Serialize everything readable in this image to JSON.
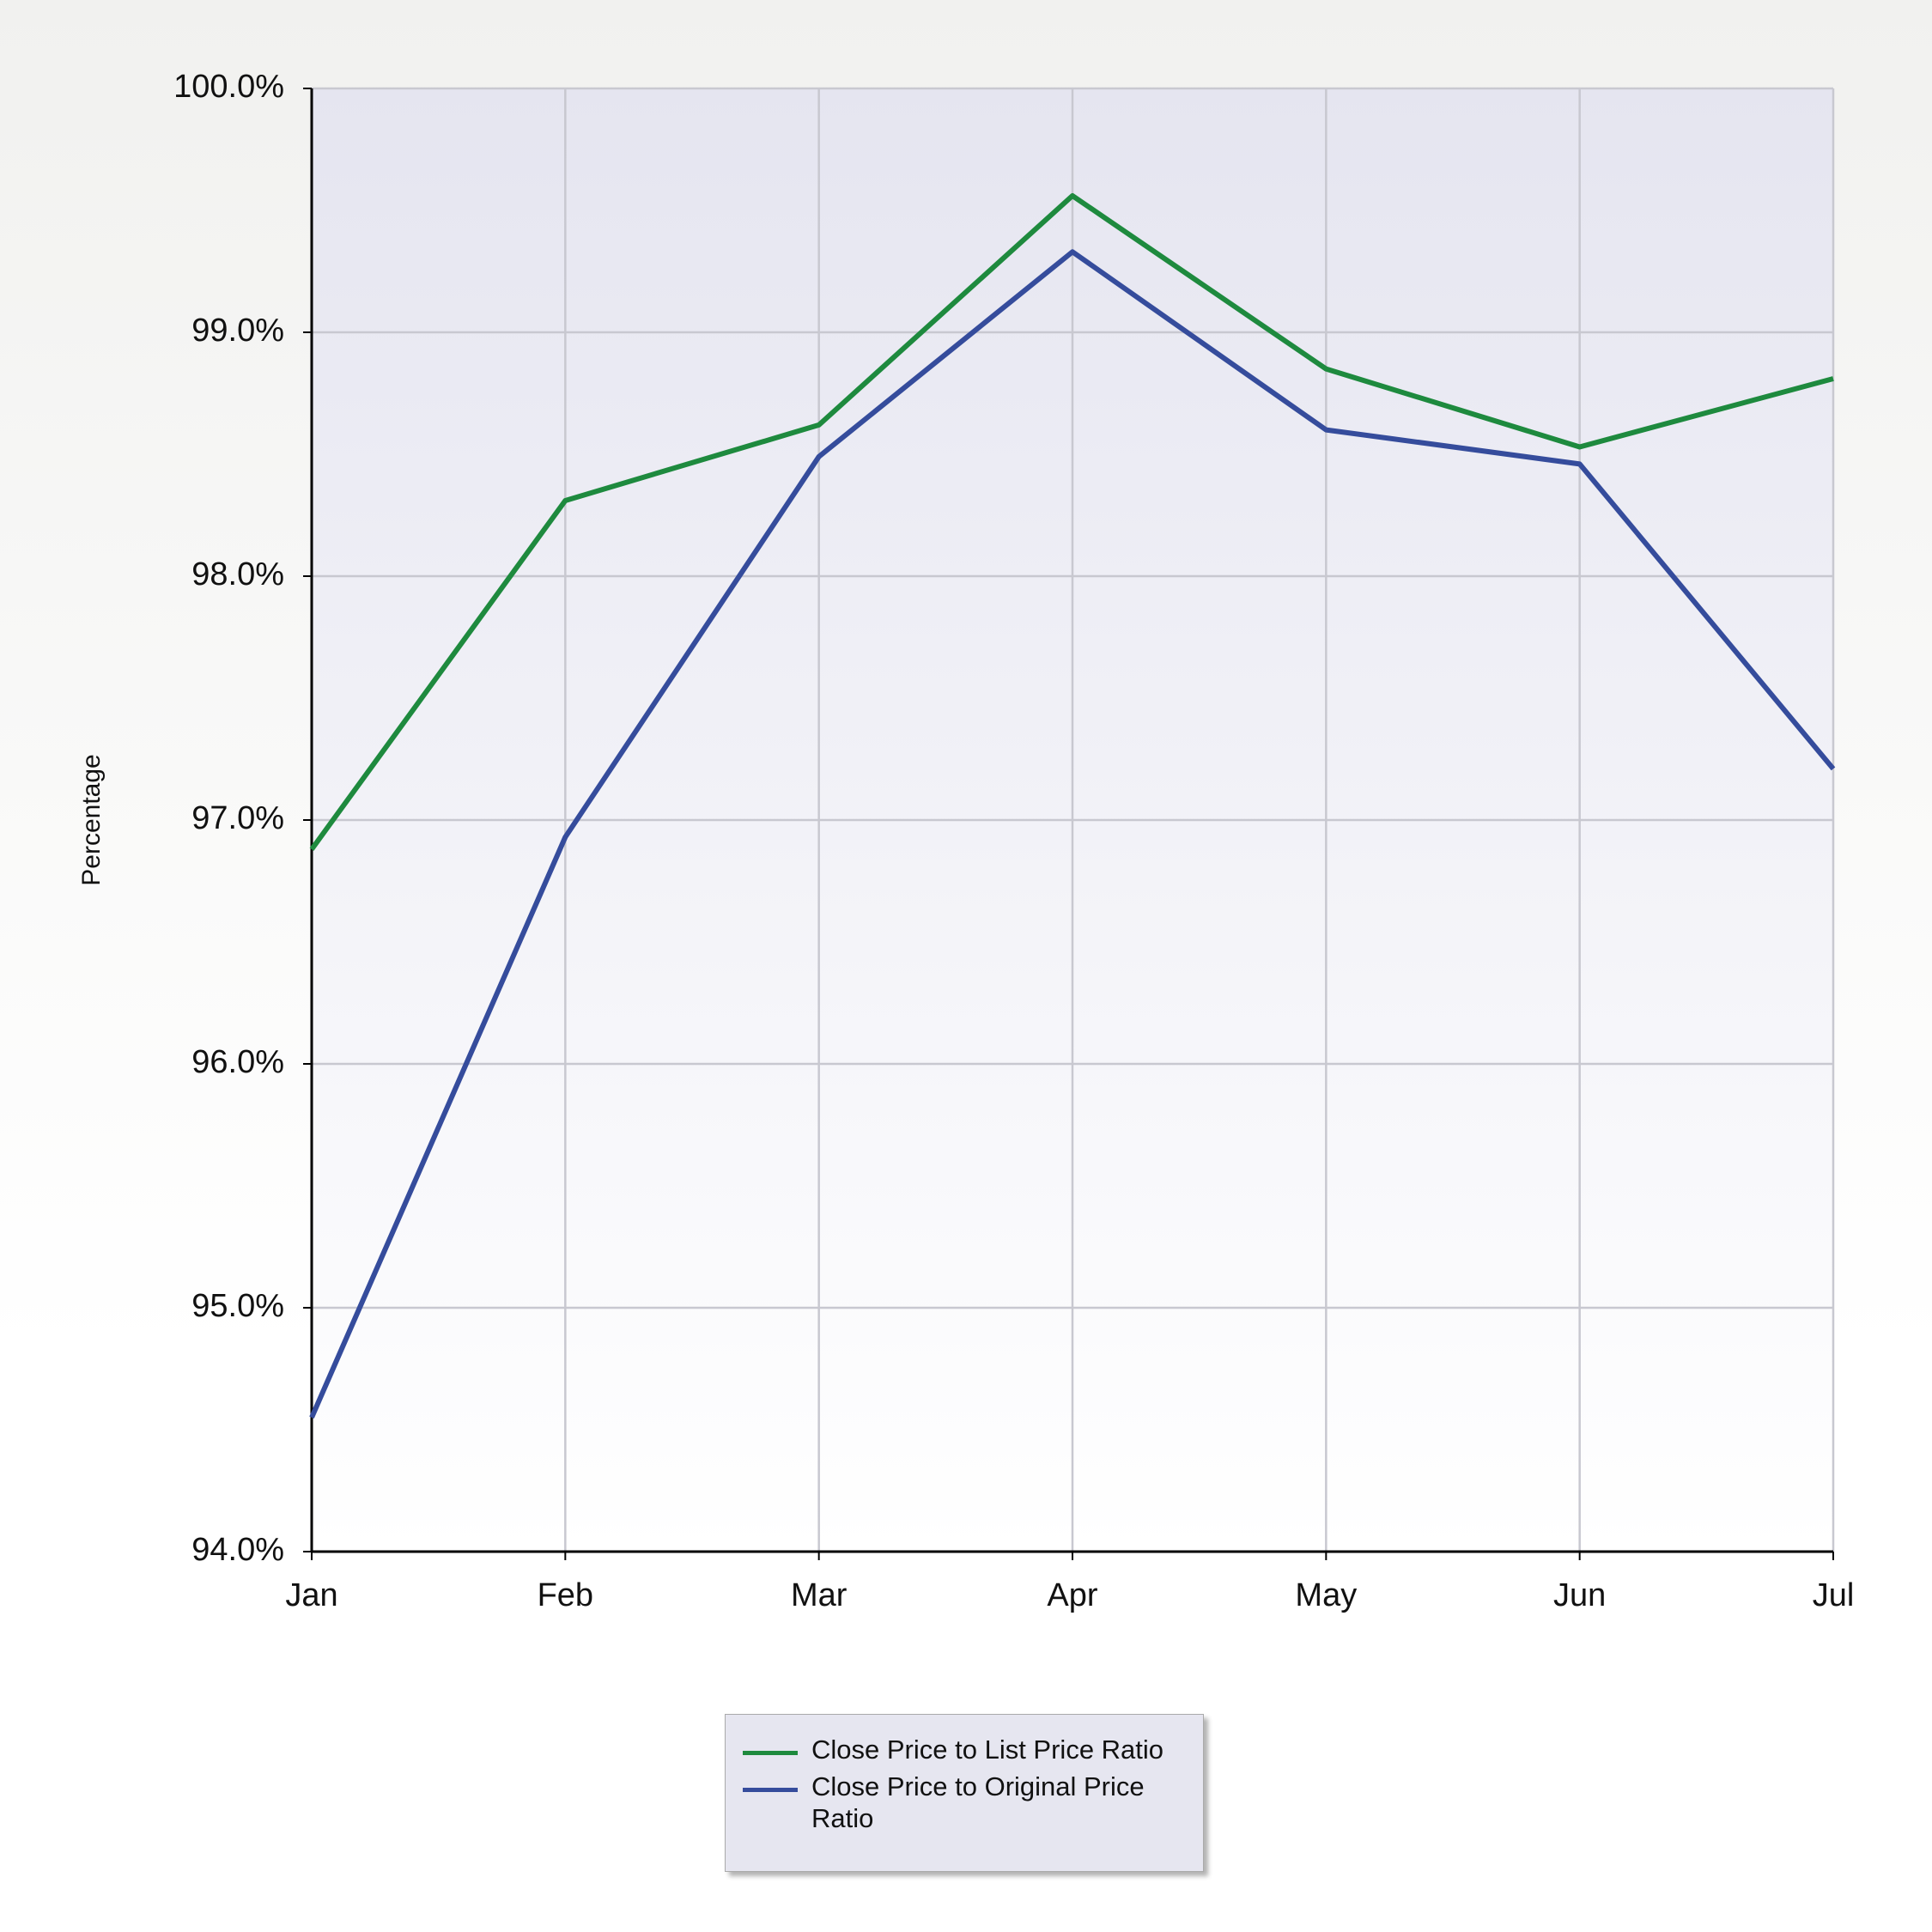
{
  "chart_data": {
    "type": "line",
    "y_label": "Percentage",
    "categories": [
      "Jan",
      "Feb",
      "Mar",
      "Apr",
      "May",
      "Jun",
      "Jul"
    ],
    "series": [
      {
        "name": "Close Price to List Price Ratio",
        "color": "#1e8a3e",
        "values": [
          96.88,
          98.31,
          98.62,
          99.56,
          98.85,
          98.53,
          98.81
        ]
      },
      {
        "name": "Close Price to Original Price Ratio",
        "color": "#354c9c",
        "values": [
          94.55,
          96.93,
          98.49,
          99.33,
          98.6,
          98.46,
          97.21
        ]
      }
    ],
    "ylim": [
      94,
      100
    ],
    "yticks": [
      {
        "value": 94,
        "label": "94.0%"
      },
      {
        "value": 95,
        "label": "95.0%"
      },
      {
        "value": 96,
        "label": "96.0%"
      },
      {
        "value": 97,
        "label": "97.0%"
      },
      {
        "value": 98,
        "label": "98.0%"
      },
      {
        "value": 99,
        "label": "99.0%"
      },
      {
        "value": 100,
        "label": "100.0%"
      }
    ],
    "grid": true,
    "legend": "bottom"
  }
}
